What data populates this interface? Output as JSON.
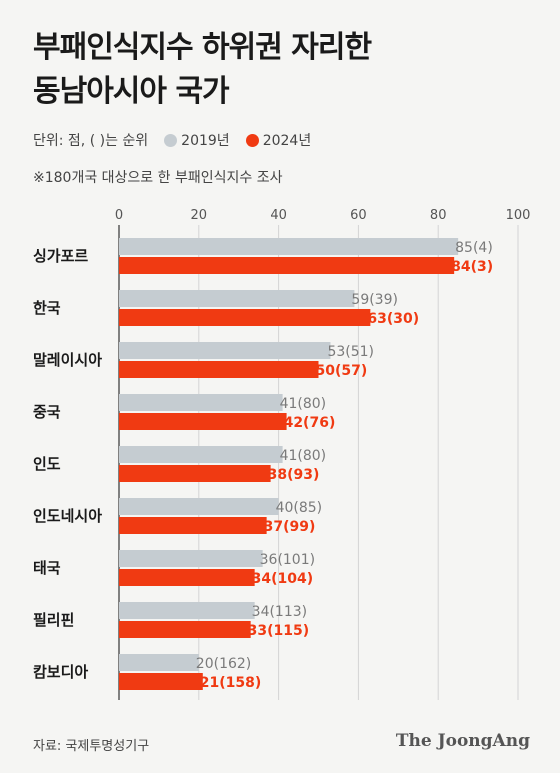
{
  "header": {
    "title_line1": "부패인식지수 하위권 자리한",
    "title_line2": "동남아시아 국가"
  },
  "legend": {
    "unit_text": "단위: 점, ( )는 순위",
    "items": [
      {
        "label": "2019년",
        "color": "#c5ccd1"
      },
      {
        "label": "2024년",
        "color": "#f03a12"
      }
    ]
  },
  "note": "※180개국 대상으로 한 부패인식지수 조사",
  "footer": {
    "source": "자료: 국제투명성기구",
    "brand": "The JoongAng"
  },
  "chart_data": {
    "type": "bar",
    "orientation": "horizontal",
    "categories": [
      "싱가포르",
      "한국",
      "말레이시아",
      "중국",
      "인도",
      "인도네시아",
      "태국",
      "필리핀",
      "캄보디아"
    ],
    "series": [
      {
        "name": "2019년",
        "color": "#c5ccd1",
        "label_color": "#7a7a7a",
        "values": [
          85,
          59,
          53,
          41,
          41,
          40,
          36,
          34,
          20
        ],
        "labels": [
          "85(4)",
          "59(39)",
          "53(51)",
          "41(80)",
          "41(80)",
          "40(85)",
          "36(101)",
          "34(113)",
          "20(162)"
        ]
      },
      {
        "name": "2024년",
        "color": "#f03a12",
        "label_color": "#f03a12",
        "values": [
          84,
          63,
          50,
          42,
          38,
          37,
          34,
          33,
          21
        ],
        "labels": [
          "84(3)",
          "63(30)",
          "50(57)",
          "42(76)",
          "38(93)",
          "37(99)",
          "34(104)",
          "33(115)",
          "21(158)"
        ]
      }
    ],
    "xlim": [
      0,
      100
    ],
    "xticks": [
      0,
      20,
      40,
      60,
      80,
      100
    ],
    "grid": true,
    "legend_position": "top-left"
  }
}
